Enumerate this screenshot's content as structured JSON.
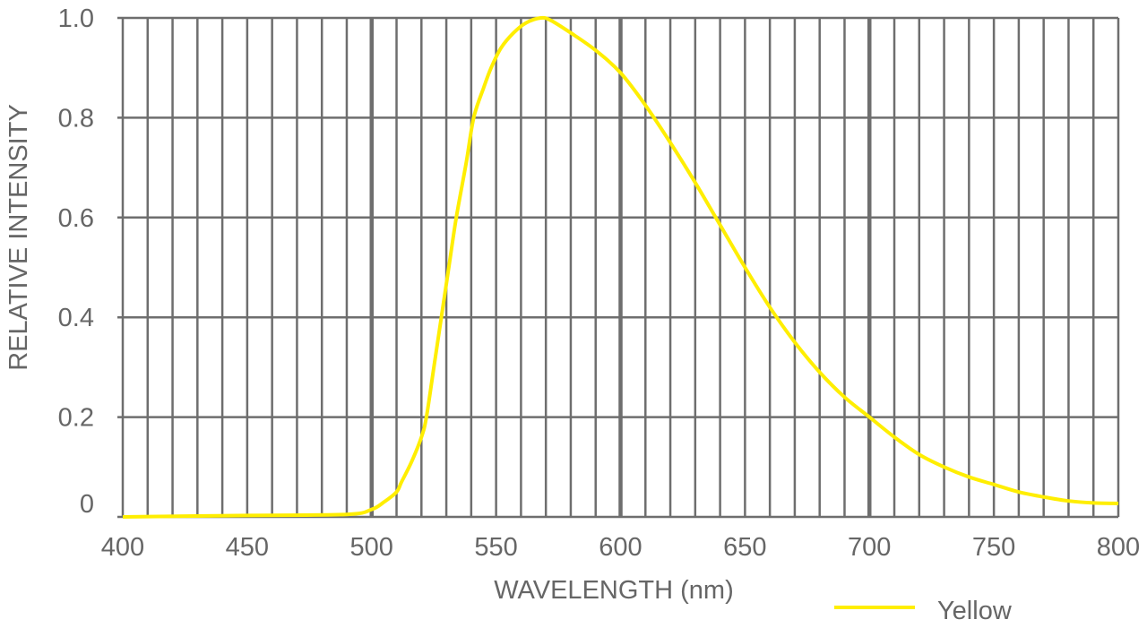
{
  "chart_data": {
    "type": "line",
    "title": "",
    "xlabel": "WAVELENGTH (nm)",
    "ylabel": "RELATIVE INTENSITY",
    "xlim": [
      400,
      800
    ],
    "ylim": [
      0,
      1.0
    ],
    "x_ticks": [
      "400",
      "450",
      "500",
      "550",
      "600",
      "650",
      "700",
      "750",
      "800"
    ],
    "y_ticks": [
      "0",
      "0.2",
      "0.4",
      "0.6",
      "0.8",
      "1.0"
    ],
    "grid": true,
    "legend_placement": "bottom-right",
    "series": [
      {
        "name": "Yellow",
        "color": "#ffee00",
        "x": [
          400,
          450,
          490,
          500,
          505,
          510,
          512,
          516,
          520,
          522,
          525,
          528,
          531,
          534,
          538,
          541,
          545,
          548,
          552,
          557,
          562,
          568,
          572,
          580,
          590,
          600,
          610,
          620,
          630,
          640,
          650,
          660,
          670,
          680,
          690,
          700,
          710,
          720,
          730,
          740,
          750,
          760,
          770,
          780,
          790,
          800
        ],
        "y": [
          0.0,
          0.003,
          0.005,
          0.015,
          0.03,
          0.05,
          0.07,
          0.11,
          0.16,
          0.2,
          0.3,
          0.4,
          0.5,
          0.6,
          0.71,
          0.8,
          0.86,
          0.9,
          0.94,
          0.97,
          0.99,
          1.0,
          0.995,
          0.97,
          0.935,
          0.89,
          0.825,
          0.75,
          0.67,
          0.585,
          0.5,
          0.42,
          0.35,
          0.29,
          0.24,
          0.2,
          0.16,
          0.125,
          0.1,
          0.08,
          0.065,
          0.05,
          0.04,
          0.032,
          0.028,
          0.027
        ]
      }
    ]
  }
}
